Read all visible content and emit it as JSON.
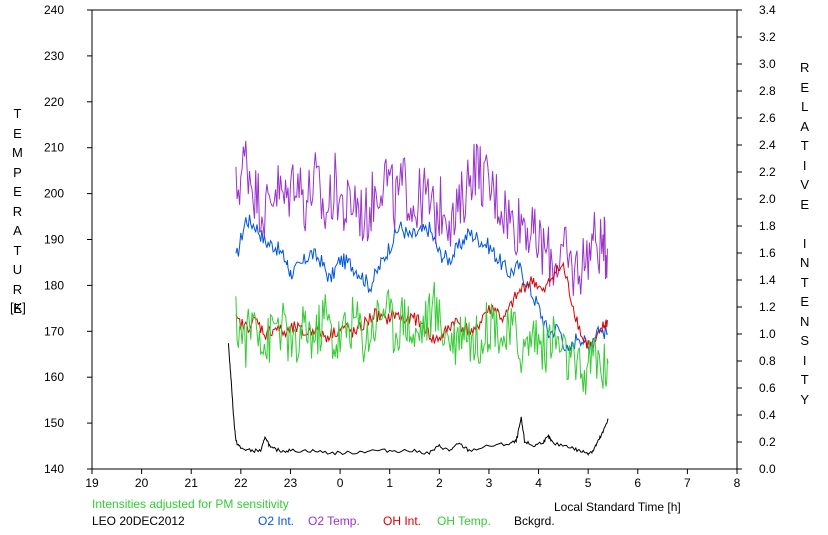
{
  "chart_data": {
    "type": "line",
    "left_axis_label": "TEMPERATURE",
    "left_axis_unit": "[K]",
    "right_axis_label": "RELATIVE INTENSITY",
    "xlabel": "Local Standard Time [h]",
    "x_ticks": [
      19,
      20,
      21,
      22,
      23,
      0,
      1,
      2,
      3,
      4,
      5,
      6,
      7,
      8
    ],
    "x_range": [
      19,
      32
    ],
    "y_left_range": [
      140,
      240
    ],
    "y_left_ticks": [
      140,
      150,
      160,
      170,
      180,
      190,
      200,
      210,
      220,
      230,
      240
    ],
    "y_right_range": [
      0.0,
      3.4
    ],
    "y_right_ticks": [
      "0.0",
      "0.2",
      "0.4",
      "0.6",
      "0.8",
      "1.0",
      "1.2",
      "1.4",
      "1.6",
      "1.8",
      "2.0",
      "2.2",
      "2.4",
      "2.6",
      "2.8",
      "3.0",
      "3.2",
      "3.4"
    ],
    "note": "Intensities adjusted for PM sensitivity",
    "station": "LEO 20DEC2012",
    "legend_placement": "bottom",
    "grid": false,
    "series": [
      {
        "name": "O2 Int.",
        "axis": "right",
        "color": "#0055dd",
        "points": [
          [
            21.9,
            1.55
          ],
          [
            22.1,
            1.85
          ],
          [
            22.3,
            1.8
          ],
          [
            22.5,
            1.68
          ],
          [
            22.7,
            1.65
          ],
          [
            22.9,
            1.55
          ],
          [
            23.0,
            1.45
          ],
          [
            23.2,
            1.5
          ],
          [
            23.4,
            1.6
          ],
          [
            23.6,
            1.55
          ],
          [
            23.8,
            1.4
          ],
          [
            24.0,
            1.55
          ],
          [
            24.2,
            1.52
          ],
          [
            24.4,
            1.45
          ],
          [
            24.6,
            1.35
          ],
          [
            24.8,
            1.5
          ],
          [
            25.0,
            1.65
          ],
          [
            25.2,
            1.8
          ],
          [
            25.4,
            1.72
          ],
          [
            25.6,
            1.75
          ],
          [
            25.8,
            1.78
          ],
          [
            26.0,
            1.6
          ],
          [
            26.2,
            1.55
          ],
          [
            26.4,
            1.65
          ],
          [
            26.6,
            1.75
          ],
          [
            26.8,
            1.7
          ],
          [
            27.0,
            1.65
          ],
          [
            27.2,
            1.55
          ],
          [
            27.4,
            1.45
          ],
          [
            27.6,
            1.5
          ],
          [
            27.8,
            1.35
          ],
          [
            28.0,
            1.2
          ],
          [
            28.2,
            1.0
          ],
          [
            28.4,
            1.05
          ],
          [
            28.6,
            0.85
          ],
          [
            28.8,
            1.0
          ],
          [
            29.0,
            0.9
          ],
          [
            29.2,
            1.05
          ],
          [
            29.4,
            1.0
          ]
        ]
      },
      {
        "name": "O2 Temp.",
        "axis": "left",
        "color": "#9933cc",
        "points": [
          [
            21.9,
            200
          ],
          [
            22.1,
            208
          ],
          [
            22.3,
            200
          ],
          [
            22.5,
            196
          ],
          [
            22.7,
            202
          ],
          [
            22.9,
            198
          ],
          [
            23.1,
            205
          ],
          [
            23.3,
            198
          ],
          [
            23.5,
            203
          ],
          [
            23.7,
            195
          ],
          [
            23.9,
            202
          ],
          [
            24.1,
            196
          ],
          [
            24.3,
            199
          ],
          [
            24.5,
            194
          ],
          [
            24.7,
            200
          ],
          [
            24.9,
            205
          ],
          [
            25.1,
            198
          ],
          [
            25.3,
            202
          ],
          [
            25.5,
            197
          ],
          [
            25.7,
            200
          ],
          [
            25.9,
            195
          ],
          [
            26.1,
            198
          ],
          [
            26.3,
            193
          ],
          [
            26.5,
            200
          ],
          [
            26.7,
            207
          ],
          [
            26.9,
            203
          ],
          [
            27.1,
            200
          ],
          [
            27.3,
            197
          ],
          [
            27.5,
            193
          ],
          [
            27.7,
            195
          ],
          [
            27.9,
            190
          ],
          [
            28.1,
            188
          ],
          [
            28.3,
            185
          ],
          [
            28.5,
            187
          ],
          [
            28.7,
            183
          ],
          [
            28.9,
            185
          ],
          [
            29.1,
            190
          ],
          [
            29.3,
            188
          ],
          [
            29.4,
            188
          ]
        ]
      },
      {
        "name": "OH Int.",
        "axis": "right",
        "color": "#dd0000",
        "points": [
          [
            21.9,
            1.1
          ],
          [
            22.1,
            1.05
          ],
          [
            22.3,
            1.1
          ],
          [
            22.5,
            1.0
          ],
          [
            22.7,
            1.05
          ],
          [
            22.9,
            1.0
          ],
          [
            23.1,
            1.05
          ],
          [
            23.3,
            1.0
          ],
          [
            23.5,
            1.05
          ],
          [
            23.7,
            0.98
          ],
          [
            23.9,
            1.02
          ],
          [
            24.1,
            1.05
          ],
          [
            24.3,
            1.0
          ],
          [
            24.5,
            1.08
          ],
          [
            24.7,
            1.15
          ],
          [
            24.9,
            1.1
          ],
          [
            25.1,
            1.15
          ],
          [
            25.3,
            1.1
          ],
          [
            25.5,
            1.12
          ],
          [
            25.7,
            1.05
          ],
          [
            25.9,
            0.95
          ],
          [
            26.1,
            1.0
          ],
          [
            26.3,
            1.1
          ],
          [
            26.5,
            1.05
          ],
          [
            26.7,
            1.0
          ],
          [
            26.9,
            1.15
          ],
          [
            27.1,
            1.2
          ],
          [
            27.3,
            1.1
          ],
          [
            27.5,
            1.25
          ],
          [
            27.7,
            1.35
          ],
          [
            27.9,
            1.4
          ],
          [
            28.1,
            1.3
          ],
          [
            28.3,
            1.45
          ],
          [
            28.5,
            1.5
          ],
          [
            28.7,
            1.2
          ],
          [
            28.9,
            0.95
          ],
          [
            29.1,
            0.9
          ],
          [
            29.3,
            1.05
          ],
          [
            29.4,
            1.1
          ]
        ]
      },
      {
        "name": "OH Temp.",
        "axis": "left",
        "color": "#33cc33",
        "points": [
          [
            21.9,
            172
          ],
          [
            22.1,
            168
          ],
          [
            22.3,
            174
          ],
          [
            22.5,
            166
          ],
          [
            22.7,
            172
          ],
          [
            22.9,
            170
          ],
          [
            23.1,
            165
          ],
          [
            23.3,
            171
          ],
          [
            23.5,
            168
          ],
          [
            23.7,
            174
          ],
          [
            23.9,
            167
          ],
          [
            24.1,
            170
          ],
          [
            24.3,
            173
          ],
          [
            24.5,
            168
          ],
          [
            24.7,
            172
          ],
          [
            24.9,
            176
          ],
          [
            25.1,
            170
          ],
          [
            25.3,
            174
          ],
          [
            25.5,
            168
          ],
          [
            25.7,
            172
          ],
          [
            25.9,
            175
          ],
          [
            26.1,
            170
          ],
          [
            26.3,
            168
          ],
          [
            26.5,
            172
          ],
          [
            26.7,
            167
          ],
          [
            26.9,
            170
          ],
          [
            27.1,
            173
          ],
          [
            27.3,
            168
          ],
          [
            27.5,
            170
          ],
          [
            27.7,
            165
          ],
          [
            27.9,
            170
          ],
          [
            28.1,
            166
          ],
          [
            28.3,
            169
          ],
          [
            28.5,
            165
          ],
          [
            28.7,
            162
          ],
          [
            28.9,
            160
          ],
          [
            29.1,
            165
          ],
          [
            29.3,
            162
          ],
          [
            29.4,
            163
          ]
        ]
      },
      {
        "name": "Bckgrd.",
        "axis": "left",
        "color": "#000000",
        "points": [
          [
            21.75,
            167
          ],
          [
            21.8,
            160
          ],
          [
            21.85,
            152
          ],
          [
            21.9,
            146
          ],
          [
            22.0,
            144.5
          ],
          [
            22.2,
            144
          ],
          [
            22.4,
            144
          ],
          [
            22.5,
            147
          ],
          [
            22.6,
            144.5
          ],
          [
            22.8,
            144
          ],
          [
            23.0,
            144
          ],
          [
            23.4,
            144
          ],
          [
            23.8,
            143.5
          ],
          [
            24.2,
            143.5
          ],
          [
            24.6,
            144
          ],
          [
            25.0,
            144
          ],
          [
            25.4,
            144
          ],
          [
            25.8,
            143.5
          ],
          [
            26.0,
            145
          ],
          [
            26.2,
            144
          ],
          [
            26.4,
            145.5
          ],
          [
            26.6,
            144
          ],
          [
            27.0,
            145
          ],
          [
            27.4,
            145.5
          ],
          [
            27.55,
            146
          ],
          [
            27.65,
            151
          ],
          [
            27.72,
            146
          ],
          [
            27.9,
            145
          ],
          [
            28.1,
            146
          ],
          [
            28.2,
            147
          ],
          [
            28.3,
            145.5
          ],
          [
            28.6,
            145
          ],
          [
            28.8,
            144
          ],
          [
            29.0,
            143.5
          ],
          [
            29.1,
            144
          ],
          [
            29.2,
            146
          ],
          [
            29.3,
            148
          ],
          [
            29.4,
            151
          ]
        ]
      }
    ]
  }
}
